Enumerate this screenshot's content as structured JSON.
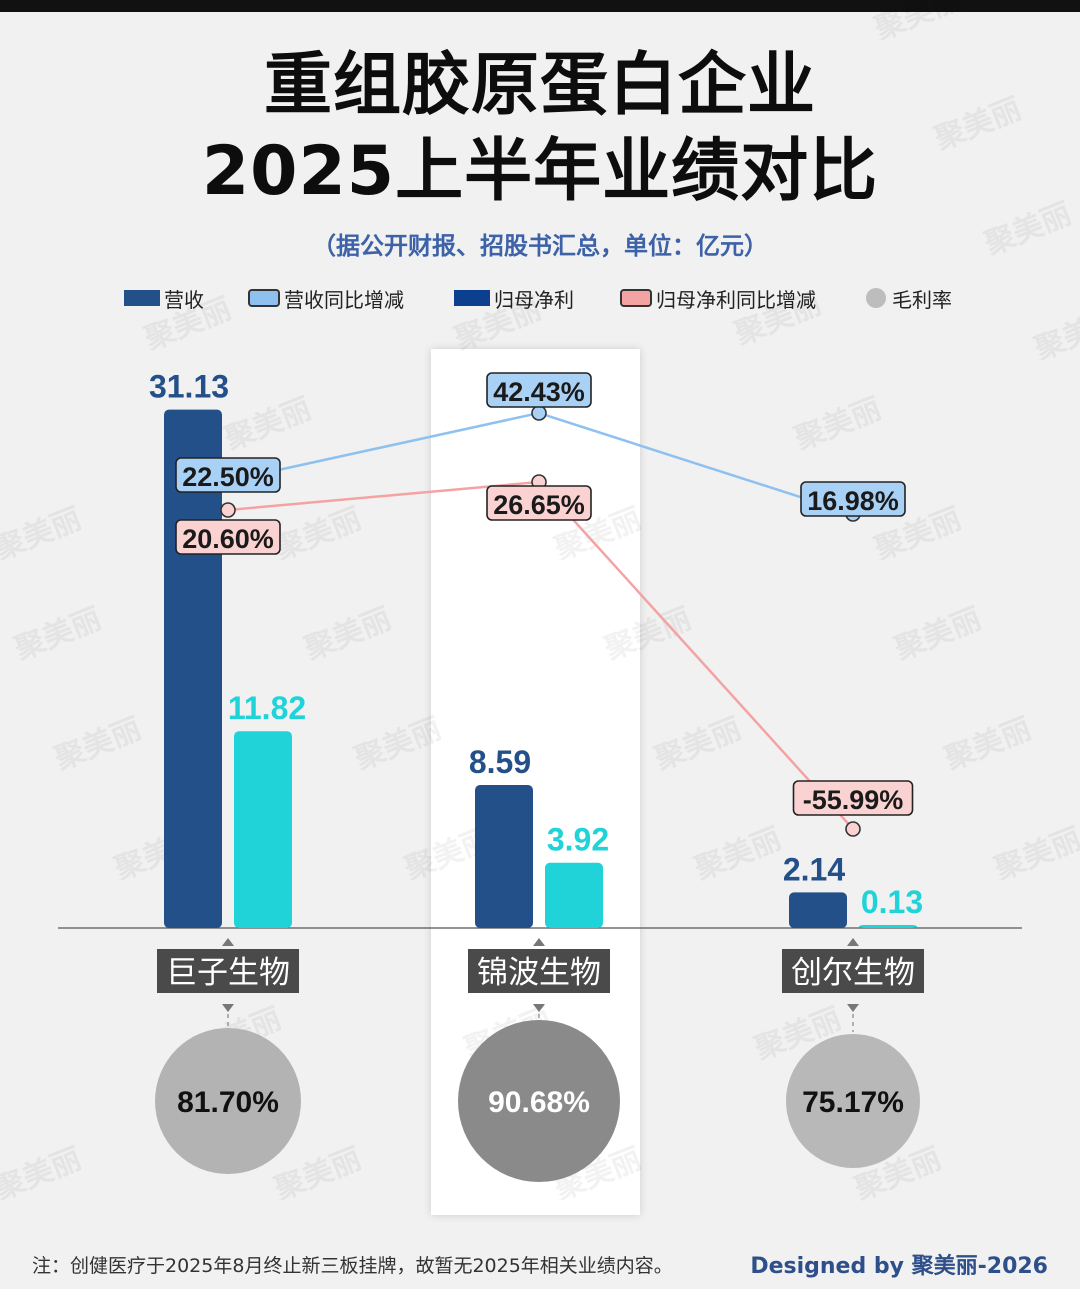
{
  "title_line1": "重组胶原蛋白企业",
  "title_line2": "2025上半年业绩对比",
  "subtitle": "（据公开财报、招股书汇总，单位：亿元）",
  "legend": [
    {
      "label": "营收",
      "kind": "bar",
      "color": "#24508a"
    },
    {
      "label": "营收同比增减",
      "kind": "callout",
      "color": "#8ec1ef"
    },
    {
      "label": "归母净利",
      "kind": "bar",
      "color": "#0d3f8f"
    },
    {
      "label": "归母净利同比增减",
      "kind": "callout",
      "color": "#f4a3a3"
    },
    {
      "label": "毛利率",
      "kind": "dot",
      "color": "#bdbdbd"
    }
  ],
  "watermark": "聚美丽",
  "chart_data": {
    "type": "bar",
    "categories": [
      "巨子生物",
      "锦波生物",
      "创尔生物"
    ],
    "series": [
      {
        "name": "营收",
        "values": [
          31.13,
          8.59,
          2.14
        ],
        "labels": [
          "31.13",
          "8.59",
          "2.14"
        ],
        "color": "#24508a"
      },
      {
        "name": "归母净利",
        "values": [
          11.82,
          3.92,
          0.13
        ],
        "labels": [
          "11.82",
          "3.92",
          "0.13"
        ],
        "color": "#1fd3d8"
      }
    ],
    "lines": [
      {
        "name": "营收同比增减",
        "values": [
          22.5,
          42.43,
          16.98
        ],
        "labels": [
          "22.50%",
          "42.43%",
          "16.98%"
        ],
        "color": "#8ec1ef"
      },
      {
        "name": "归母净利同比增减",
        "values": [
          20.6,
          26.65,
          -55.99
        ],
        "labels": [
          "20.60%",
          "26.65%",
          "-55.99%"
        ],
        "color": "#f4a3a3"
      }
    ],
    "gross_margin": {
      "name": "毛利率",
      "values": [
        81.7,
        90.68,
        75.17
      ],
      "labels": [
        "81.70%",
        "90.68%",
        "75.17%"
      ]
    },
    "highlight_category": "锦波生物"
  },
  "footnote": "注：创健医疗于2025年8月终止新三板挂牌，故暂无2025年相关业绩内容。",
  "credit": "Designed by 聚美丽-2026"
}
